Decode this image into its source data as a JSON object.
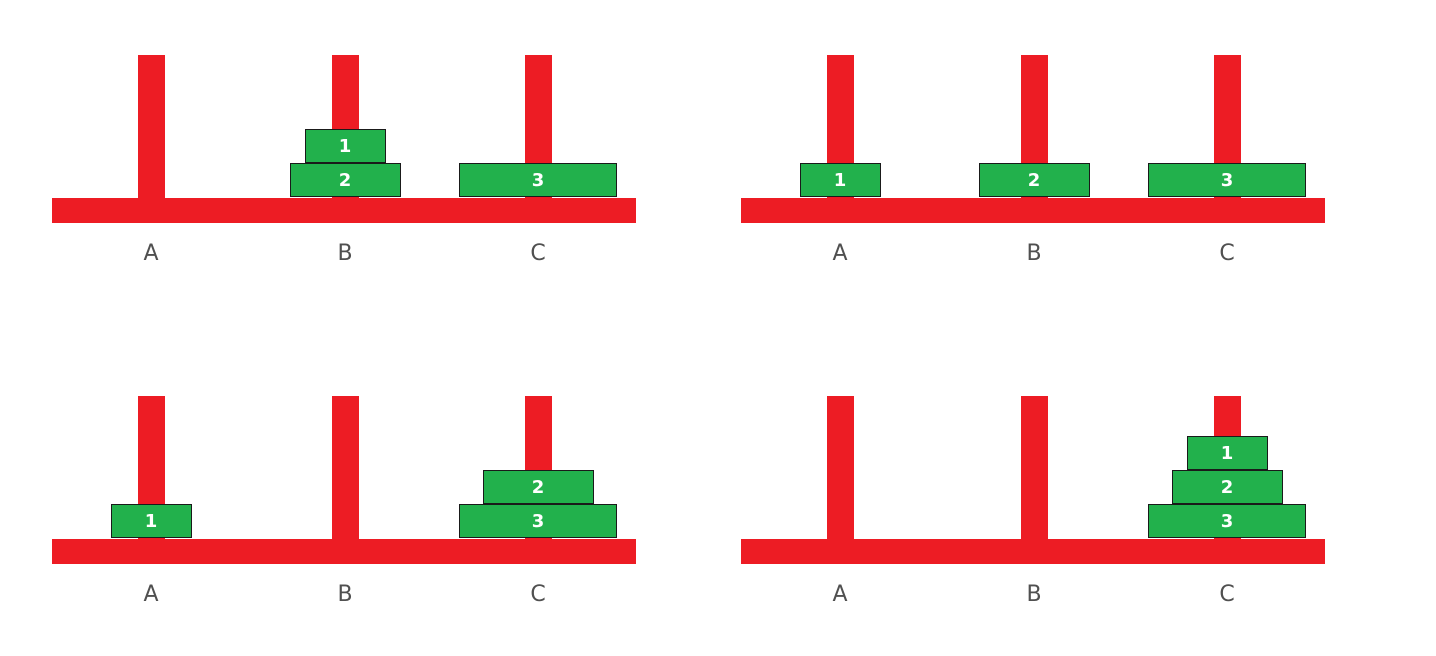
{
  "colors": {
    "frame": "#ed1c24",
    "disk": "#22b14c",
    "disk_text": "#ffffff",
    "label": "#505050"
  },
  "peg_labels": [
    "A",
    "B",
    "C"
  ],
  "states": [
    {
      "pegs": [
        [],
        [
          2,
          1
        ],
        [
          3
        ]
      ]
    },
    {
      "pegs": [
        [
          1
        ],
        [
          2
        ],
        [
          3
        ]
      ]
    },
    {
      "pegs": [
        [
          1
        ],
        [],
        [
          3,
          2
        ]
      ]
    },
    {
      "pegs": [
        [],
        [],
        [
          3,
          2,
          1
        ]
      ]
    }
  ]
}
